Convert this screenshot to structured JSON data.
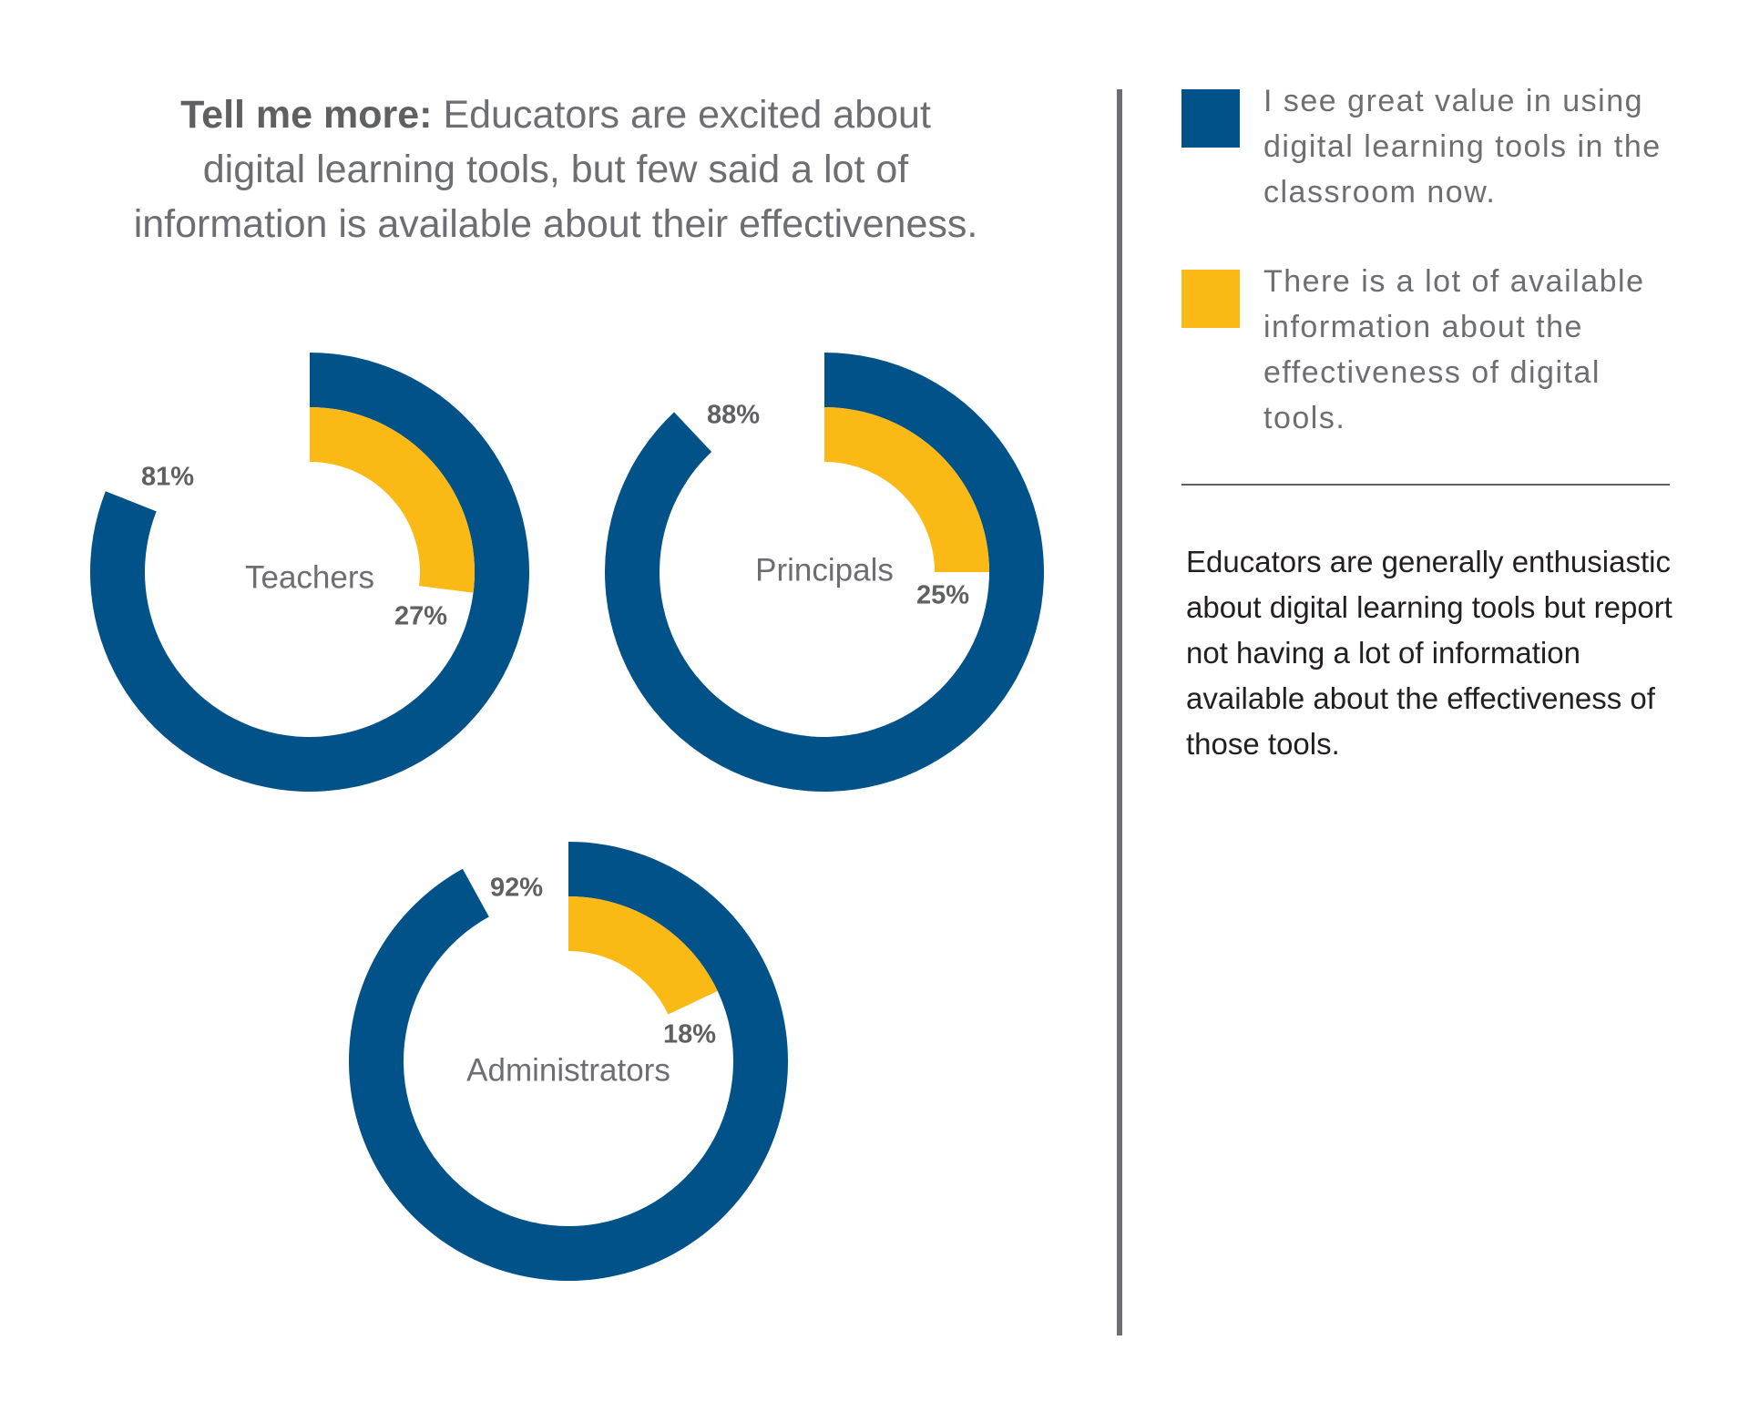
{
  "headline": {
    "bold": "Tell me more:",
    "line1": "Educators are excited about",
    "line2": "digital learning tools, but few said a lot of",
    "line3": "information is available about their effectiveness."
  },
  "legend": {
    "value": {
      "label": "I see great value in using digital learning tools in the classroom now.",
      "color": "#02528a"
    },
    "info": {
      "label": "There is a lot of available information about the effectiveness of digital tools.",
      "color": "#fbb915"
    }
  },
  "note": "Educators are generally enthusiastic about digital learning tools but report not having a lot of  information available about the effectiveness of those tools.",
  "chart_data": {
    "type": "donut",
    "unit": "%",
    "groups": [
      {
        "name": "Teachers",
        "value": 81,
        "value_label": "81%",
        "info": 27,
        "info_label": "27%"
      },
      {
        "name": "Principals",
        "value": 88,
        "value_label": "88%",
        "info": 25,
        "info_label": "25%"
      },
      {
        "name": "Administrators",
        "value": 92,
        "value_label": "92%",
        "info": 18,
        "info_label": "18%"
      }
    ],
    "series": [
      {
        "key": "value",
        "color": "#02528a"
      },
      {
        "key": "info",
        "color": "#fbb915"
      }
    ]
  }
}
